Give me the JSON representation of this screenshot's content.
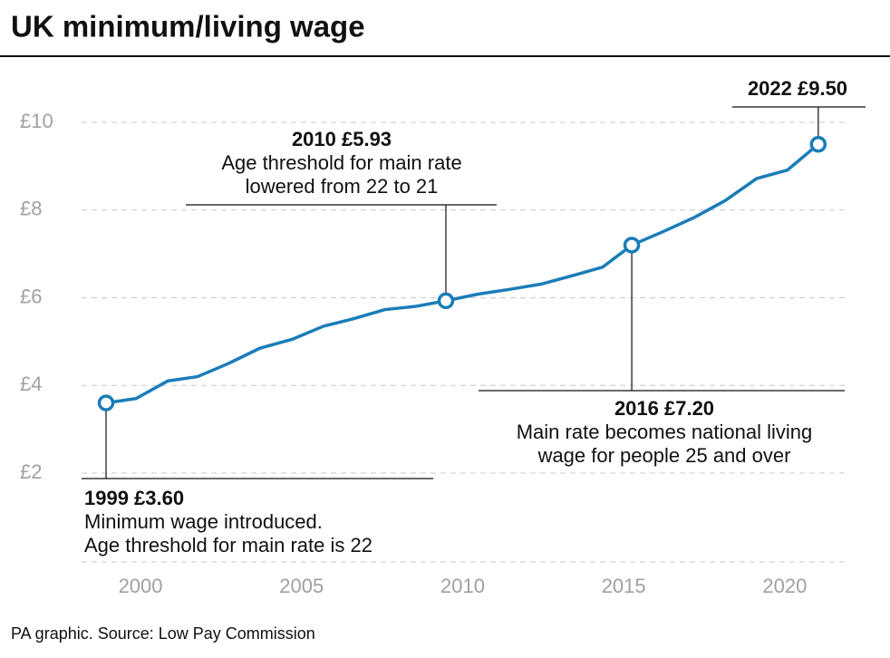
{
  "chart_data": {
    "type": "line",
    "title": "UK minimum/living wage",
    "source": "PA graphic. Source: Low Pay Commission",
    "x": [
      1998.93,
      1999.86,
      2000.84,
      2001.77,
      2002.73,
      2003.71,
      2004.7,
      2005.68,
      2006.61,
      2007.59,
      2008.52,
      2009.48,
      2010.46,
      2011.45,
      2012.43,
      2013.39,
      2014.35,
      2015.25,
      2016.2,
      2017.19,
      2018.14,
      2019.13,
      2020.08,
      2021.04
    ],
    "series": [
      {
        "color": "#1a7db8",
        "values": [
          3.6,
          3.7,
          4.1,
          4.2,
          4.5,
          4.85,
          5.05,
          5.35,
          5.52,
          5.73,
          5.8,
          5.93,
          6.08,
          6.19,
          6.31,
          6.5,
          6.7,
          7.2,
          7.5,
          7.83,
          8.21,
          8.72,
          8.91,
          9.5
        ]
      }
    ],
    "xlim": [
      1998.17,
      2021.86
    ],
    "xticks": [
      2000,
      2005,
      2010,
      2015,
      2020
    ],
    "ylim": [
      2,
      10
    ],
    "yticks": [
      {
        "value": 2,
        "label": "£2"
      },
      {
        "value": 4,
        "label": "£4"
      },
      {
        "value": 6,
        "label": "£6"
      },
      {
        "value": 8,
        "label": "£8"
      },
      {
        "value": 10,
        "label": "£10"
      }
    ],
    "grid": true,
    "annotations": [
      {
        "label": "1999 £3.60",
        "text": [
          "Minimum wage introduced.",
          "Age threshold for main rate is 22"
        ]
      },
      {
        "label": "2010 £5.93",
        "text": [
          "Age threshold for main rate",
          "lowered from 22 to 21"
        ]
      },
      {
        "label": "2016 £7.20",
        "text": [
          "Main rate becomes national living",
          "wage for people 25 and over"
        ]
      },
      {
        "label": "2022 £9.50",
        "text": []
      }
    ]
  }
}
